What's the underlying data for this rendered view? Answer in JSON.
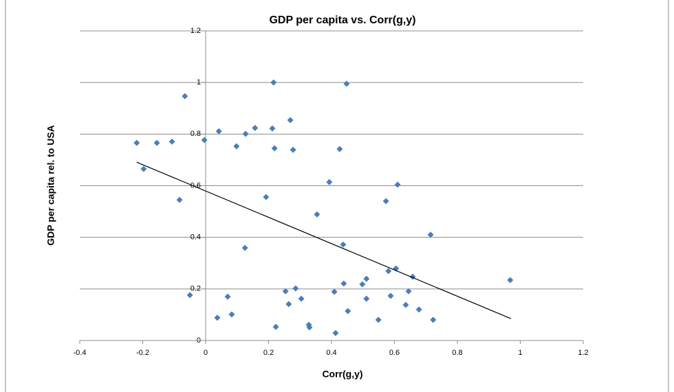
{
  "chart_data": {
    "type": "scatter",
    "title": "GDP per capita vs. Corr(g,y)",
    "x_label": "Corr(g,y)",
    "y_label": "GDP per capita rel. to USA",
    "xlim": [
      -0.4,
      1.2
    ],
    "ylim": [
      0,
      1.2
    ],
    "xticks": [
      -0.4,
      -0.2,
      0,
      0.2,
      0.4,
      0.6,
      0.8,
      1,
      1.2
    ],
    "yticks": [
      0,
      0.2,
      0.4,
      0.6,
      0.8,
      1,
      1.2
    ],
    "grid": true,
    "series": [
      {
        "color": "#4a7ebb",
        "x": [
          -0.219,
          -0.197,
          -0.155,
          -0.107,
          -0.083,
          -0.066,
          -0.05,
          -0.004,
          0.037,
          0.042,
          0.07,
          0.083,
          0.098,
          0.125,
          0.127,
          0.157,
          0.192,
          0.212,
          0.216,
          0.219,
          0.223,
          0.254,
          0.264,
          0.269,
          0.278,
          0.286,
          0.304,
          0.328,
          0.33,
          0.354,
          0.393,
          0.409,
          0.413,
          0.426,
          0.437,
          0.439,
          0.448,
          0.452,
          0.498,
          0.511,
          0.511,
          0.549,
          0.573,
          0.581,
          0.588,
          0.605,
          0.61,
          0.636,
          0.645,
          0.658,
          0.678,
          0.715,
          0.723,
          0.968
        ],
        "values": [
          0.766,
          0.665,
          0.766,
          0.771,
          0.545,
          0.947,
          0.176,
          0.777,
          0.088,
          0.811,
          0.17,
          0.101,
          0.753,
          0.359,
          0.801,
          0.824,
          0.556,
          0.822,
          1.0,
          0.745,
          0.053,
          0.191,
          0.141,
          0.854,
          0.739,
          0.202,
          0.162,
          0.061,
          0.051,
          0.489,
          0.614,
          0.189,
          0.029,
          0.742,
          0.372,
          0.221,
          0.995,
          0.114,
          0.218,
          0.239,
          0.162,
          0.08,
          0.54,
          0.269,
          0.173,
          0.279,
          0.604,
          0.138,
          0.191,
          0.247,
          0.12,
          0.41,
          0.08,
          0.234
        ]
      }
    ],
    "trendline": {
      "color": "#000000",
      "x": [
        -0.219,
        0.97
      ],
      "values": [
        0.691,
        0.085
      ]
    }
  }
}
